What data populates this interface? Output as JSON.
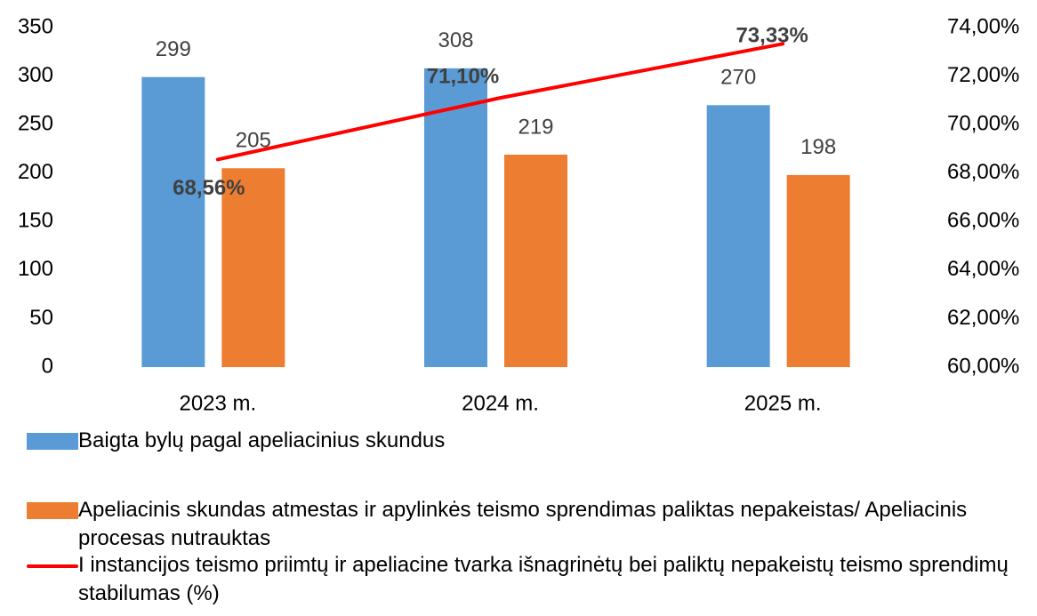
{
  "chart_data": {
    "type": "bar",
    "categories": [
      "2023 m.",
      "2024 m.",
      "2025 m."
    ],
    "series": [
      {
        "name": "Baigta bylų pagal apeliacinius skundus",
        "color": "#5b9bd5",
        "values": [
          299,
          308,
          270
        ]
      },
      {
        "name": "Apeliacinis skundas atmestas ir apylinkės teismo sprendimas paliktas nepakeistas/ Apeliacinis procesas nutrauktas",
        "color": "#ed7d31",
        "values": [
          205,
          219,
          198
        ]
      },
      {
        "name": "I instancijos teismo priimtų ir apeliacine tvarka išnagrinėtų bei paliktų nepakeistų teismo sprendimų stabilumas (%)",
        "color": "#ff0000",
        "type": "line",
        "axis": "y2",
        "values": [
          68.56,
          71.1,
          73.33
        ],
        "value_labels": [
          "68,56%",
          "71,10%",
          "73,33%"
        ]
      }
    ],
    "ylim": [
      0,
      350
    ],
    "yticks": [
      0,
      50,
      100,
      150,
      200,
      250,
      300,
      350
    ],
    "y2lim": [
      60,
      74
    ],
    "y2ticks": [
      {
        "value": 60,
        "label": "60,00%"
      },
      {
        "value": 62,
        "label": "62,00%"
      },
      {
        "value": 64,
        "label": "64,00%"
      },
      {
        "value": 66,
        "label": "66,00%"
      },
      {
        "value": 68,
        "label": "68,00%"
      },
      {
        "value": 70,
        "label": "70,00%"
      },
      {
        "value": 72,
        "label": "72,00%"
      },
      {
        "value": 74,
        "label": "74,00%"
      }
    ],
    "grid": false,
    "legend": "bottom"
  }
}
